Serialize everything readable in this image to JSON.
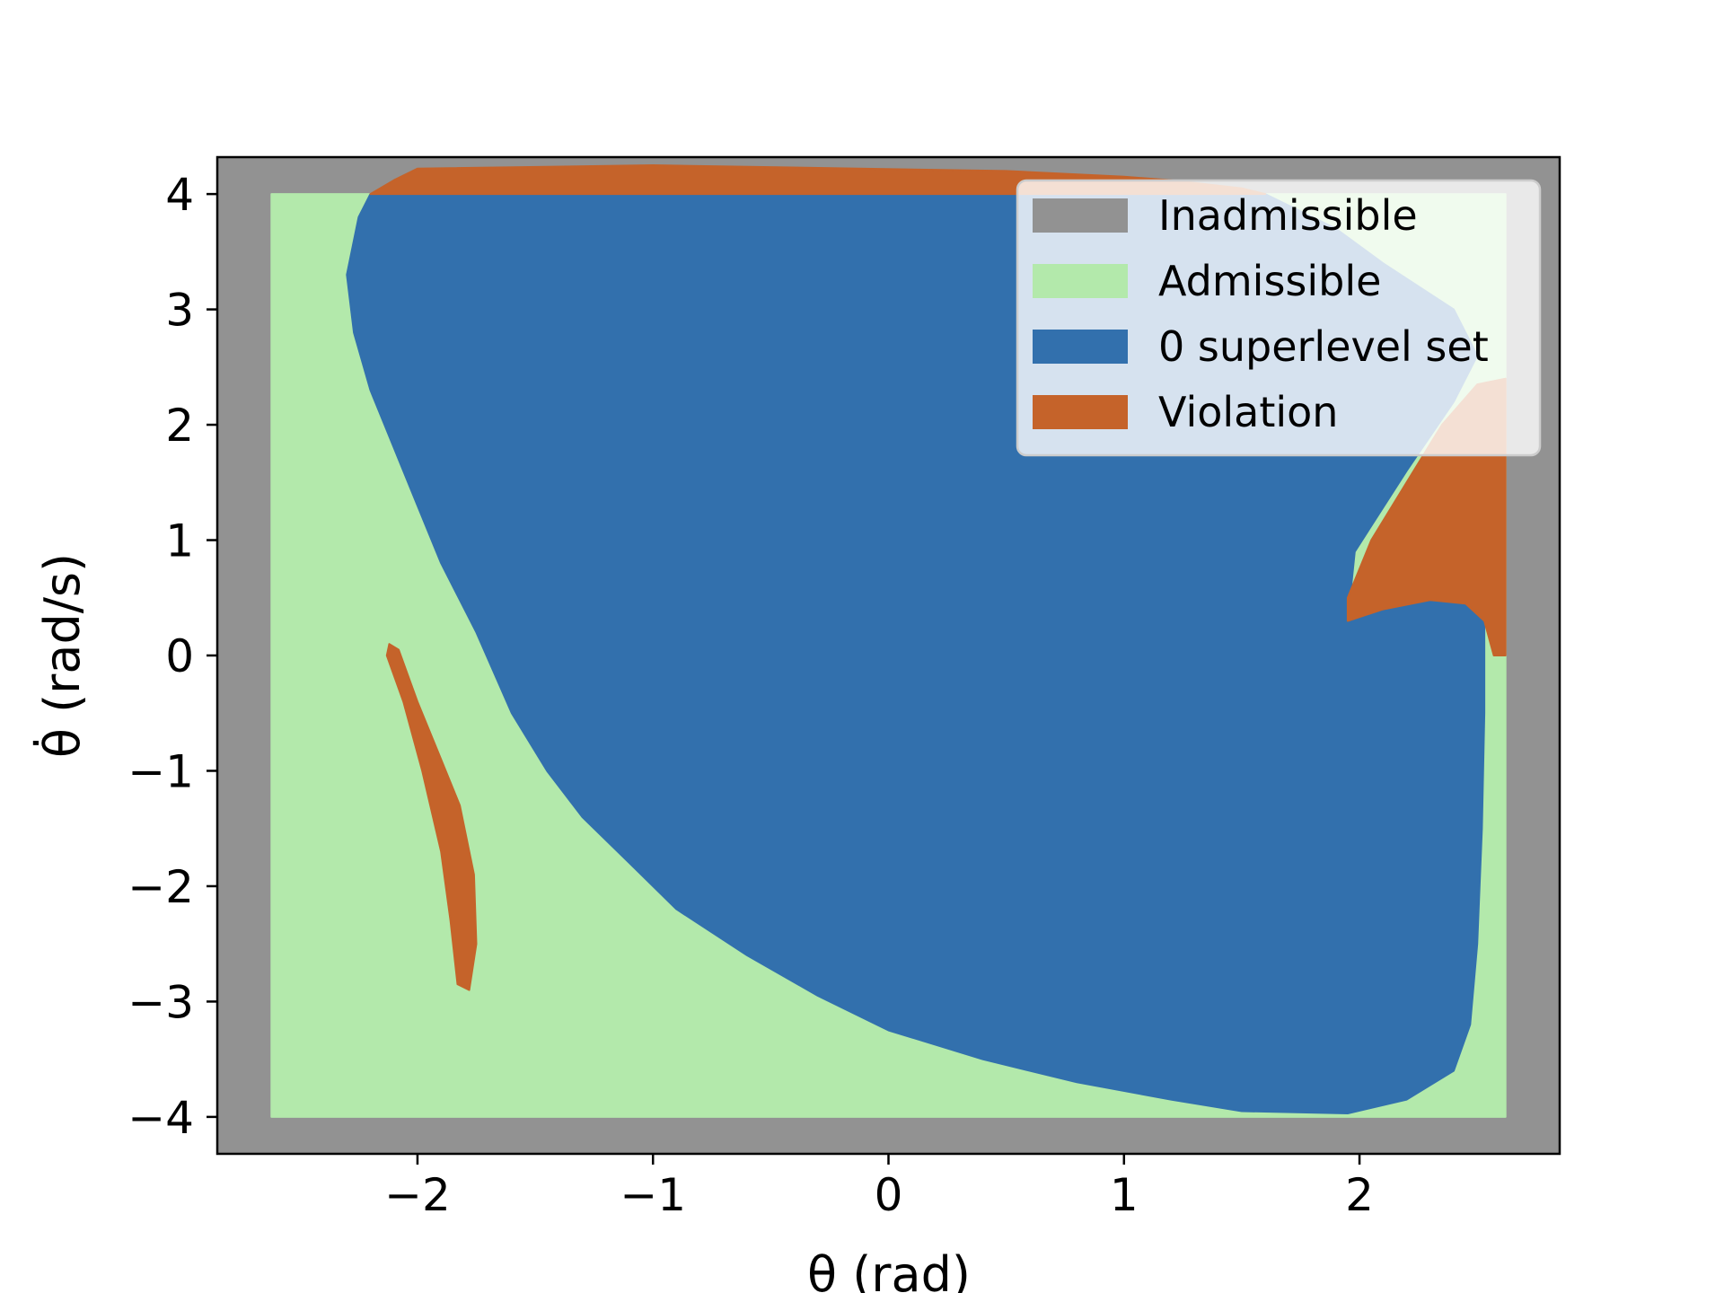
{
  "chart_data": {
    "type": "heatmap",
    "xlabel": "θ (rad)",
    "ylabel": "θ̇ (rad/s)",
    "title": "",
    "xlim": [
      -2.85,
      2.85
    ],
    "ylim": [
      -4.32,
      4.32
    ],
    "xticks": [
      {
        "value": -2,
        "label": "−2"
      },
      {
        "value": -1,
        "label": "−1"
      },
      {
        "value": 0,
        "label": "0"
      },
      {
        "value": 1,
        "label": "1"
      },
      {
        "value": 2,
        "label": "2"
      }
    ],
    "yticks": [
      {
        "value": 4,
        "label": "4"
      },
      {
        "value": 3,
        "label": "3"
      },
      {
        "value": 2,
        "label": "2"
      },
      {
        "value": 1,
        "label": "1"
      },
      {
        "value": 0,
        "label": "0"
      },
      {
        "value": -1,
        "label": "−1"
      },
      {
        "value": -2,
        "label": "−2"
      },
      {
        "value": -3,
        "label": "−3"
      },
      {
        "value": -4,
        "label": "−4"
      }
    ],
    "legend_position": "top-right",
    "series": [
      {
        "name": "Inadmissible",
        "color": "#929292",
        "regions": [
          [
            [
              -2.85,
              -4.32
            ],
            [
              2.85,
              -4.32
            ],
            [
              2.85,
              4.32
            ],
            [
              -2.85,
              4.32
            ]
          ]
        ]
      },
      {
        "name": "Admissible",
        "color": "#b3e9ab",
        "regions": [
          [
            [
              -2.62,
              -4.0
            ],
            [
              2.62,
              -4.0
            ],
            [
              2.62,
              4.0
            ],
            [
              -2.62,
              4.0
            ]
          ]
        ]
      },
      {
        "name": "0 superlevel set",
        "color": "#3270ad",
        "regions": [
          [
            [
              -2.2,
              4.0
            ],
            [
              -2.25,
              3.8
            ],
            [
              -2.3,
              3.3
            ],
            [
              -2.27,
              2.8
            ],
            [
              -2.2,
              2.3
            ],
            [
              -2.1,
              1.8
            ],
            [
              -2.0,
              1.3
            ],
            [
              -1.9,
              0.8
            ],
            [
              -1.75,
              0.2
            ],
            [
              -1.6,
              -0.5
            ],
            [
              -1.45,
              -1.0
            ],
            [
              -1.3,
              -1.4
            ],
            [
              -1.1,
              -1.8
            ],
            [
              -0.9,
              -2.2
            ],
            [
              -0.6,
              -2.6
            ],
            [
              -0.3,
              -2.95
            ],
            [
              0.0,
              -3.25
            ],
            [
              0.4,
              -3.5
            ],
            [
              0.8,
              -3.7
            ],
            [
              1.2,
              -3.85
            ],
            [
              1.5,
              -3.95
            ],
            [
              1.95,
              -3.97
            ],
            [
              2.2,
              -3.85
            ],
            [
              2.4,
              -3.6
            ],
            [
              2.47,
              -3.2
            ],
            [
              2.5,
              -2.5
            ],
            [
              2.52,
              -1.5
            ],
            [
              2.53,
              -0.5
            ],
            [
              2.53,
              0.35
            ],
            [
              2.45,
              0.45
            ],
            [
              2.3,
              0.48
            ],
            [
              2.1,
              0.4
            ],
            [
              1.95,
              0.3
            ],
            [
              1.98,
              0.9
            ],
            [
              2.2,
              1.6
            ],
            [
              2.4,
              2.2
            ],
            [
              2.5,
              2.6
            ],
            [
              2.4,
              3.0
            ],
            [
              2.1,
              3.4
            ],
            [
              1.9,
              3.7
            ],
            [
              1.6,
              4.0
            ]
          ]
        ]
      },
      {
        "name": "Violation",
        "color": "#c5632a",
        "regions": [
          [
            [
              -2.2,
              4.0
            ],
            [
              -2.1,
              4.12
            ],
            [
              -2.0,
              4.22
            ],
            [
              -1.0,
              4.25
            ],
            [
              0.5,
              4.2
            ],
            [
              1.0,
              4.15
            ],
            [
              1.2,
              4.12
            ],
            [
              1.5,
              4.05
            ],
            [
              1.6,
              4.0
            ]
          ],
          [
            [
              1.95,
              0.3
            ],
            [
              2.1,
              0.4
            ],
            [
              2.3,
              0.48
            ],
            [
              2.45,
              0.45
            ],
            [
              2.53,
              0.3
            ],
            [
              2.57,
              0.0
            ],
            [
              2.62,
              0.0
            ],
            [
              2.62,
              2.4
            ],
            [
              2.5,
              2.35
            ],
            [
              2.35,
              2.0
            ],
            [
              2.2,
              1.5
            ],
            [
              2.05,
              1.0
            ],
            [
              1.95,
              0.5
            ]
          ],
          [
            [
              -2.12,
              0.1
            ],
            [
              -2.08,
              0.05
            ],
            [
              -2.0,
              -0.4
            ],
            [
              -1.9,
              -0.9
            ],
            [
              -1.82,
              -1.3
            ],
            [
              -1.76,
              -1.9
            ],
            [
              -1.75,
              -2.5
            ],
            [
              -1.78,
              -2.9
            ],
            [
              -1.83,
              -2.85
            ],
            [
              -1.86,
              -2.3
            ],
            [
              -1.9,
              -1.7
            ],
            [
              -1.98,
              -1.0
            ],
            [
              -2.06,
              -0.4
            ],
            [
              -2.13,
              0.0
            ]
          ]
        ]
      }
    ]
  }
}
